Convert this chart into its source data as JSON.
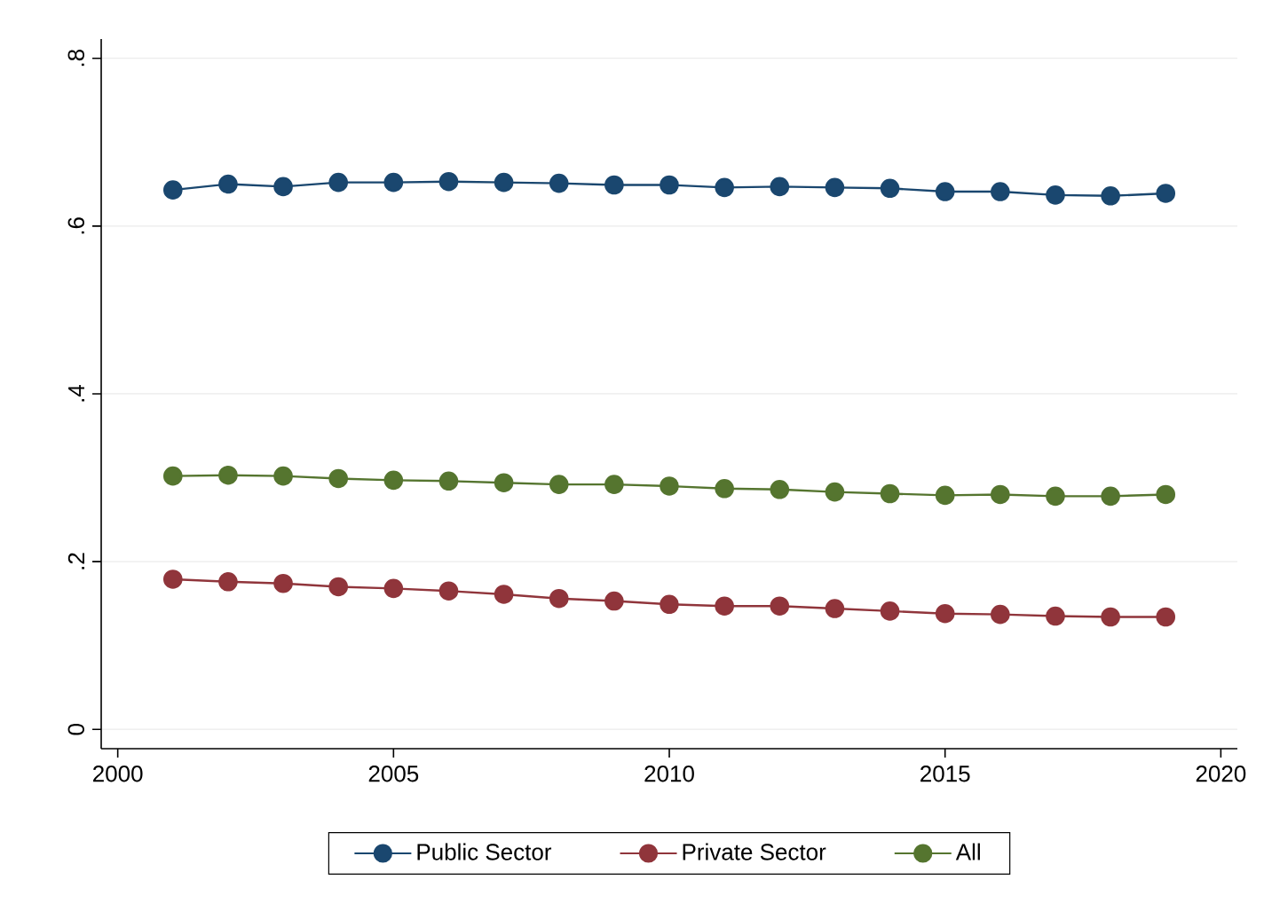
{
  "chart_data": {
    "type": "line",
    "x": [
      2001,
      2002,
      2003,
      2004,
      2005,
      2006,
      2007,
      2008,
      2009,
      2010,
      2011,
      2012,
      2013,
      2014,
      2015,
      2016,
      2017,
      2018,
      2019
    ],
    "series": [
      {
        "name": "Public Sector",
        "color": "#1a476f",
        "values": [
          0.643,
          0.65,
          0.647,
          0.652,
          0.652,
          0.653,
          0.652,
          0.651,
          0.649,
          0.649,
          0.646,
          0.647,
          0.646,
          0.645,
          0.641,
          0.641,
          0.637,
          0.636,
          0.639
        ]
      },
      {
        "name": "Private Sector",
        "color": "#90353b",
        "values": [
          0.179,
          0.176,
          0.174,
          0.17,
          0.168,
          0.165,
          0.161,
          0.156,
          0.153,
          0.149,
          0.147,
          0.147,
          0.144,
          0.141,
          0.138,
          0.137,
          0.135,
          0.134,
          0.134
        ]
      },
      {
        "name": "All",
        "color": "#55752f",
        "values": [
          0.302,
          0.303,
          0.302,
          0.299,
          0.297,
          0.296,
          0.294,
          0.292,
          0.292,
          0.29,
          0.287,
          0.286,
          0.283,
          0.281,
          0.279,
          0.28,
          0.278,
          0.278,
          0.28
        ]
      }
    ],
    "xlim": [
      1999.7,
      2020.3
    ],
    "ylim": [
      -0.023,
      0.823
    ],
    "xticks": [
      2000,
      2005,
      2010,
      2015,
      2020
    ],
    "yticks": [
      {
        "value": 0,
        "label": "0"
      },
      {
        "value": 0.2,
        "label": ".2"
      },
      {
        "value": 0.4,
        "label": ".4"
      },
      {
        "value": 0.6,
        "label": ".6"
      },
      {
        "value": 0.8,
        "label": ".8"
      }
    ],
    "grid": "y",
    "legend": "bottom",
    "marker": "circle",
    "line_style": "solid"
  }
}
